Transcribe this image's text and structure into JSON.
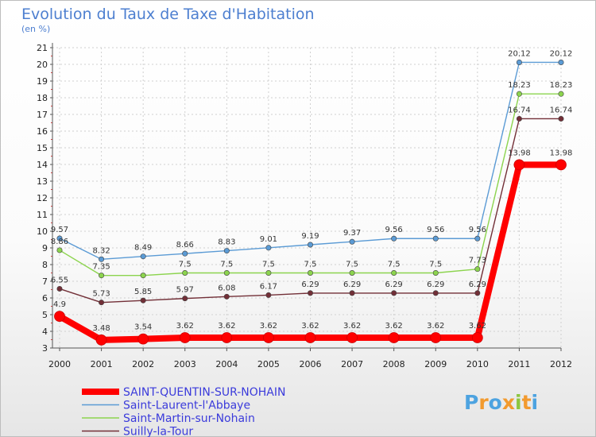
{
  "chart_data": {
    "type": "line",
    "title": "Evolution du Taux de Taxe d'Habitation",
    "subtitle": "(en %)",
    "xlabel": "",
    "ylabel": "",
    "ylim": [
      3,
      21
    ],
    "y_ticks": [
      "3",
      "4",
      "5",
      "6",
      "7",
      "8",
      "9",
      "10",
      "11",
      "12",
      "13",
      "14",
      "15",
      "16",
      "17",
      "18",
      "19",
      "20",
      "21"
    ],
    "x": [
      "2000",
      "2001",
      "2002",
      "2003",
      "2004",
      "2005",
      "2006",
      "2007",
      "2008",
      "2009",
      "2010",
      "2011",
      "2012"
    ],
    "grid": true,
    "legend_position": "bottom-left",
    "series": [
      {
        "name": "Saint-Laurent-l'Abbaye",
        "color": "#5b9bd5",
        "values": [
          9.57,
          8.32,
          8.49,
          8.66,
          8.83,
          9.01,
          9.19,
          9.37,
          9.56,
          9.56,
          9.56,
          20.12,
          20.12
        ],
        "labels": [
          "9.57",
          "8.32",
          "8.49",
          "8.66",
          "8.83",
          "9.01",
          "9.19",
          "9.37",
          "9.56",
          "9.56",
          "9.56",
          "20.12",
          "20.12"
        ]
      },
      {
        "name": "Saint-Martin-sur-Nohain",
        "color": "#8cd44e",
        "values": [
          8.86,
          7.35,
          7.35,
          7.5,
          7.5,
          7.5,
          7.5,
          7.5,
          7.5,
          7.5,
          7.73,
          18.23,
          18.23
        ],
        "labels": [
          "8.86",
          "7.35",
          "",
          "7.5",
          "7.5",
          "7.5",
          "7.5",
          "7.5",
          "7.5",
          "7.5",
          "7.73",
          "18.23",
          "18.23"
        ]
      },
      {
        "name": "Suilly-la-Tour",
        "color": "#722f37",
        "values": [
          6.55,
          5.73,
          5.85,
          5.97,
          6.08,
          6.17,
          6.29,
          6.29,
          6.29,
          6.29,
          6.29,
          16.74,
          16.74
        ],
        "labels": [
          "6.55",
          "5.73",
          "5.85",
          "5.97",
          "6.08",
          "6.17",
          "6.29",
          "6.29",
          "6.29",
          "6.29",
          "6.29",
          "16.74",
          "16.74"
        ]
      },
      {
        "name": "SAINT-QUENTIN-SUR-NOHAIN",
        "color": "#ff0000",
        "highlight": true,
        "values": [
          4.9,
          3.48,
          3.54,
          3.62,
          3.62,
          3.62,
          3.62,
          3.62,
          3.62,
          3.62,
          3.62,
          13.98,
          13.98
        ],
        "labels": [
          "4.9",
          "3.48",
          "3.54",
          "3.62",
          "3.62",
          "3.62",
          "3.62",
          "3.62",
          "3.62",
          "3.62",
          "3.62",
          "13.98",
          "13.98"
        ]
      }
    ],
    "legend_order": [
      "SAINT-QUENTIN-SUR-NOHAIN",
      "Saint-Laurent-l'Abbaye",
      "Saint-Martin-sur-Nohain",
      "Suilly-la-Tour"
    ]
  },
  "logo": {
    "letters": [
      "P",
      "r",
      "o",
      "x",
      "i",
      "t",
      "i"
    ],
    "colors": [
      "#4da3e0",
      "#f29a2e",
      "#4da3e0",
      "#f29a2e",
      "#8cc63f",
      "#f29a2e",
      "#4da3e0"
    ]
  }
}
